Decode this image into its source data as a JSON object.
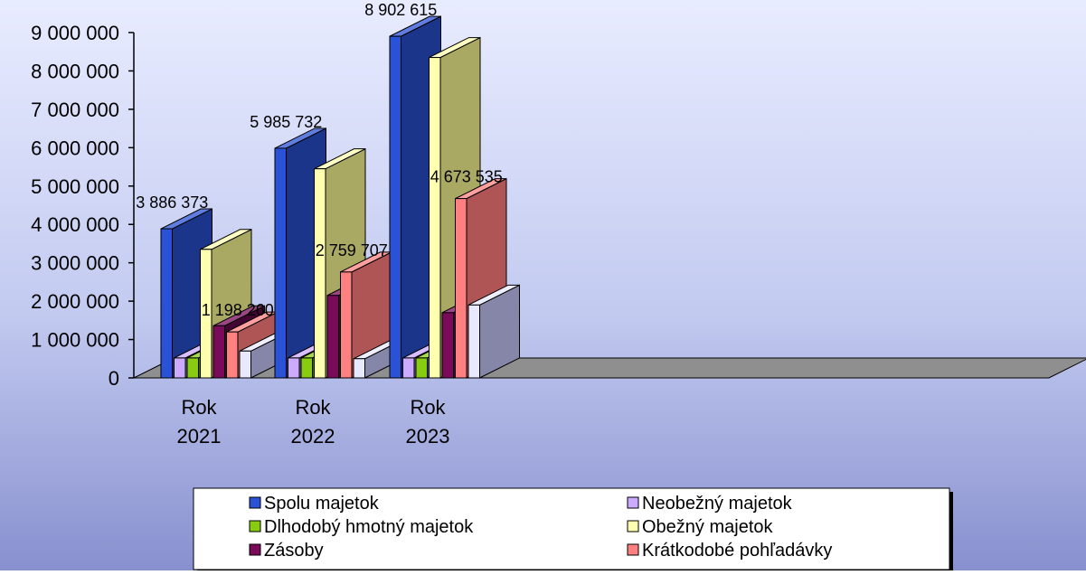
{
  "chart_data": {
    "type": "bar",
    "categories": [
      "Rok 2021",
      "Rok 2022",
      "Rok 2023"
    ],
    "category_lines": [
      [
        "Rok",
        "2021"
      ],
      [
        "Rok",
        "2022"
      ],
      [
        "Rok",
        "2023"
      ]
    ],
    "series": [
      {
        "name": "Spolu majetok",
        "values": [
          3886373,
          5985732,
          8902615
        ],
        "color": "#2a52d6"
      },
      {
        "name": "Neobežný majetok",
        "values": [
          520000,
          520000,
          520000
        ],
        "color": "#ccaaff"
      },
      {
        "name": "Dlhodobý hmotný majetok",
        "values": [
          520000,
          520000,
          520000
        ],
        "color": "#88cc11"
      },
      {
        "name": "Obežný majetok",
        "values": [
          3350000,
          5450000,
          8350000
        ],
        "color": "#ffffb0"
      },
      {
        "name": "Zásoby",
        "values": [
          1360000,
          2150000,
          1700000
        ],
        "color": "#7a0a5a"
      },
      {
        "name": "Krátkodobé pohľadávky",
        "values": [
          1198260,
          2759707,
          4673535
        ],
        "color": "#ff8080"
      },
      {
        "name": "",
        "values": [
          700000,
          500000,
          1900000
        ],
        "color": "#e8e8ff"
      }
    ],
    "data_labels": [
      {
        "series": 0,
        "category": 0,
        "text": "3 886 373"
      },
      {
        "series": 0,
        "category": 1,
        "text": "5 985 732"
      },
      {
        "series": 0,
        "category": 2,
        "text": "8 902 615"
      },
      {
        "series": 5,
        "category": 0,
        "text": "1 198 260"
      },
      {
        "series": 5,
        "category": 1,
        "text": "2 759 707"
      },
      {
        "series": 5,
        "category": 2,
        "text": "4 673 535"
      }
    ],
    "ylim": [
      0,
      9000000
    ],
    "yticks": [
      0,
      1000000,
      2000000,
      3000000,
      4000000,
      5000000,
      6000000,
      7000000,
      8000000,
      9000000
    ],
    "ytick_labels": [
      "0",
      "1 000 000",
      "2 000 000",
      "3 000 000",
      "4 000 000",
      "5 000 000",
      "6 000 000",
      "7 000 000",
      "8 000 000",
      "9 000 000"
    ],
    "title": "",
    "xlabel": "",
    "ylabel": "",
    "legend_position": "bottom",
    "grid": false,
    "style": "3d-cylinder"
  }
}
